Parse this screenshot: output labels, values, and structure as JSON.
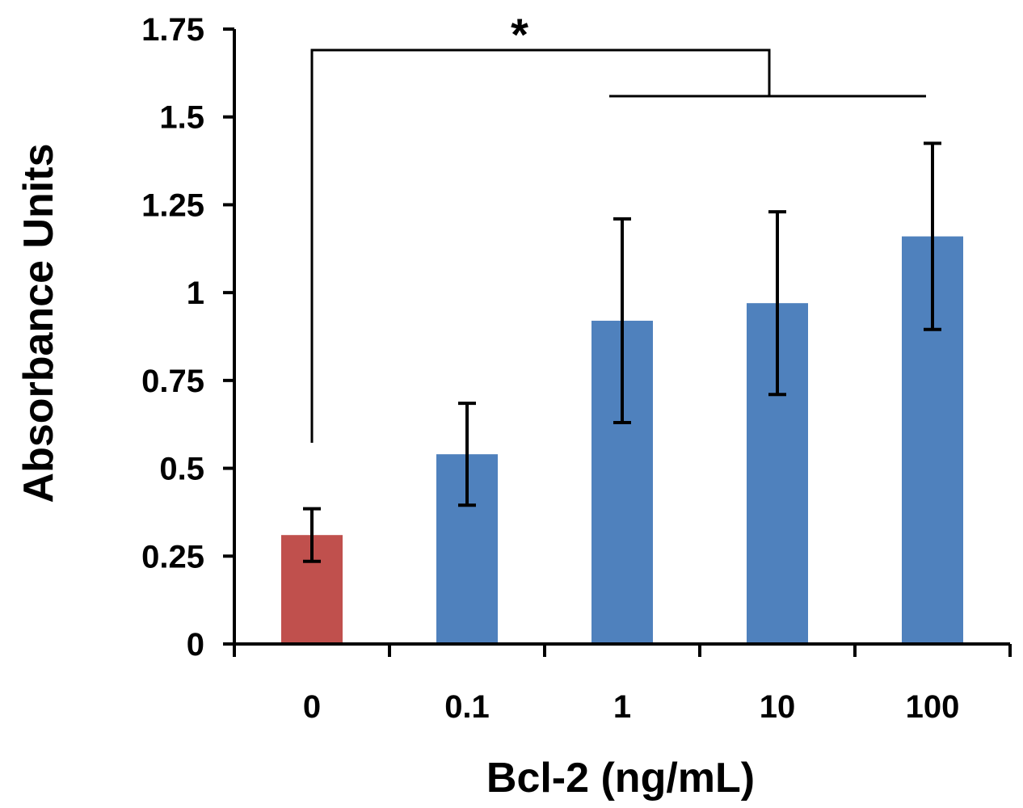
{
  "chart_data": {
    "type": "bar",
    "xlabel": "Bcl-2 (ng/mL)",
    "ylabel": "Absorbance Units",
    "categories": [
      "0",
      "0.1",
      "1",
      "10",
      "100"
    ],
    "values": [
      0.31,
      0.54,
      0.92,
      0.97,
      1.16
    ],
    "errors": [
      0.075,
      0.145,
      0.29,
      0.26,
      0.265
    ],
    "ylim": [
      0,
      1.75
    ],
    "yticks": [
      "0",
      "0.25",
      "0.5",
      "0.75",
      "1",
      "1.25",
      "1.5",
      "1.75"
    ],
    "ytick_values": [
      0,
      0.25,
      0.5,
      0.75,
      1,
      1.25,
      1.5,
      1.75
    ],
    "bar_colors": [
      "#c0504d",
      "#4f81bd",
      "#4f81bd",
      "#4f81bd",
      "#4f81bd"
    ],
    "grid": false,
    "legend": "none",
    "annotation": {
      "text": "*",
      "compares": "0",
      "against": [
        "1",
        "10",
        "100"
      ]
    }
  }
}
